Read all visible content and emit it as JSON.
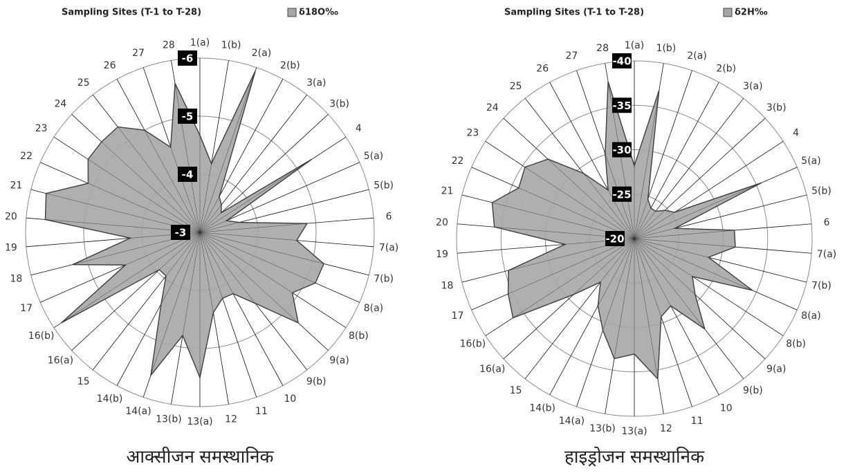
{
  "chart_data": [
    {
      "type": "radar",
      "title": "Sampling Sites (T-1 to T-28)",
      "categories": [
        "1(a)",
        "1(b)",
        "2(a)",
        "2(b)",
        "3(a)",
        "3(b)",
        "4",
        "5(a)",
        "5(b)",
        "6",
        "7(a)",
        "7(b)",
        "8(a)",
        "8(b)",
        "9(a)",
        "9(b)",
        "10",
        "11",
        "12",
        "13(a)",
        "13(b)",
        "14(a)",
        "14(b)",
        "15",
        "16(a)",
        "16(b)",
        "17",
        "18",
        "19",
        "20",
        "21",
        "22",
        "23",
        "24",
        "25",
        "26",
        "27",
        "28"
      ],
      "series": [
        {
          "name": "δ18O‰",
          "color": "#a6a6a6",
          "values": [
            -4.67,
            -4.2,
            -5.94,
            -3.7,
            -3.6,
            -3.5,
            -5.3,
            -3.5,
            -3.7,
            -4.85,
            -4.67,
            -5.2,
            -5.17,
            -4.9,
            -5.3,
            -4.55,
            -4.2,
            -4.2,
            -4.4,
            -5.5,
            -4.8,
            -5.6,
            -4.4,
            -3.95,
            -3.95,
            -5.85,
            -4.4,
            -5.26,
            -4.2,
            -5.67,
            -5.73,
            -5.1,
            -5.3,
            -5.3,
            -5.3,
            -5.0,
            -4.55,
            -5.6
          ]
        }
      ],
      "rlim": [
        -3,
        -6
      ],
      "rticks": [
        -3,
        -4,
        -5,
        -6
      ],
      "caption": "आक्सीजन समस्थानिक"
    },
    {
      "type": "radar",
      "title": "Sampling Sites (T-1 to T-28)",
      "categories": [
        "1(a)",
        "1(b)",
        "2(a)",
        "2(b)",
        "3(a)",
        "3(b)",
        "4",
        "5(a)",
        "5(b)",
        "6",
        "7(a)",
        "7(b)",
        "8(a)",
        "8(b)",
        "9(a)",
        "9(b)",
        "10",
        "11",
        "12",
        "13(a)",
        "13(b)",
        "14(a)",
        "14(b)",
        "15",
        "16(a)",
        "16(b)",
        "17",
        "18",
        "19",
        "20",
        "21",
        "22",
        "23",
        "24",
        "25",
        "26",
        "27",
        "28"
      ],
      "series": [
        {
          "name": "δ2H‰",
          "color": "#a6a6a6",
          "values": [
            -28.2,
            -36.9,
            -24.7,
            -23.9,
            -23.9,
            -24.7,
            -25.4,
            -35.6,
            -24.7,
            -31.3,
            -31.4,
            -28.6,
            -34.5,
            -27.8,
            -29.3,
            -32.9,
            -28.6,
            -29.3,
            -36,
            -33,
            -33.7,
            -30.9,
            -28.6,
            -26.2,
            -29.3,
            -36.3,
            -35.5,
            -34.6,
            -27.8,
            -35.8,
            -36.5,
            -34.2,
            -34.7,
            -33.2,
            -29.3,
            -26.2,
            -30.1,
            -37.9
          ]
        }
      ],
      "rlim": [
        -20,
        -40
      ],
      "rticks": [
        -20,
        -25,
        -30,
        -35,
        -40
      ],
      "caption": "हाइड्रोजन समस्थानिक"
    }
  ]
}
